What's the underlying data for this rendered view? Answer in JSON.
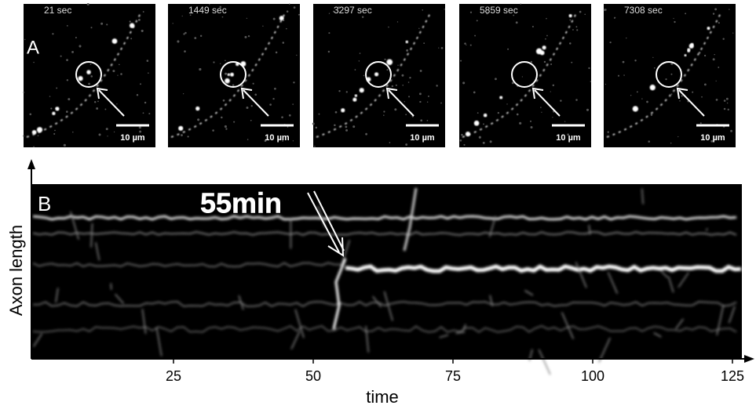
{
  "panel_a": {
    "label": "A",
    "frames": [
      {
        "time": "21 sec",
        "scale_bar": "10 µm"
      },
      {
        "time": "1449 sec",
        "scale_bar": "10 µm"
      },
      {
        "time": "3297 sec",
        "scale_bar": "10 µm"
      },
      {
        "time": "5859 sec",
        "scale_bar": "10 µm"
      },
      {
        "time": "7308 sec",
        "scale_bar": "10 µm"
      }
    ]
  },
  "panel_b": {
    "label": "B",
    "annotation": "55min",
    "y_label": "Axon length",
    "x_label": "time",
    "xlim": [
      0,
      125
    ],
    "xticks": [
      25,
      50,
      75,
      100,
      125
    ]
  }
}
